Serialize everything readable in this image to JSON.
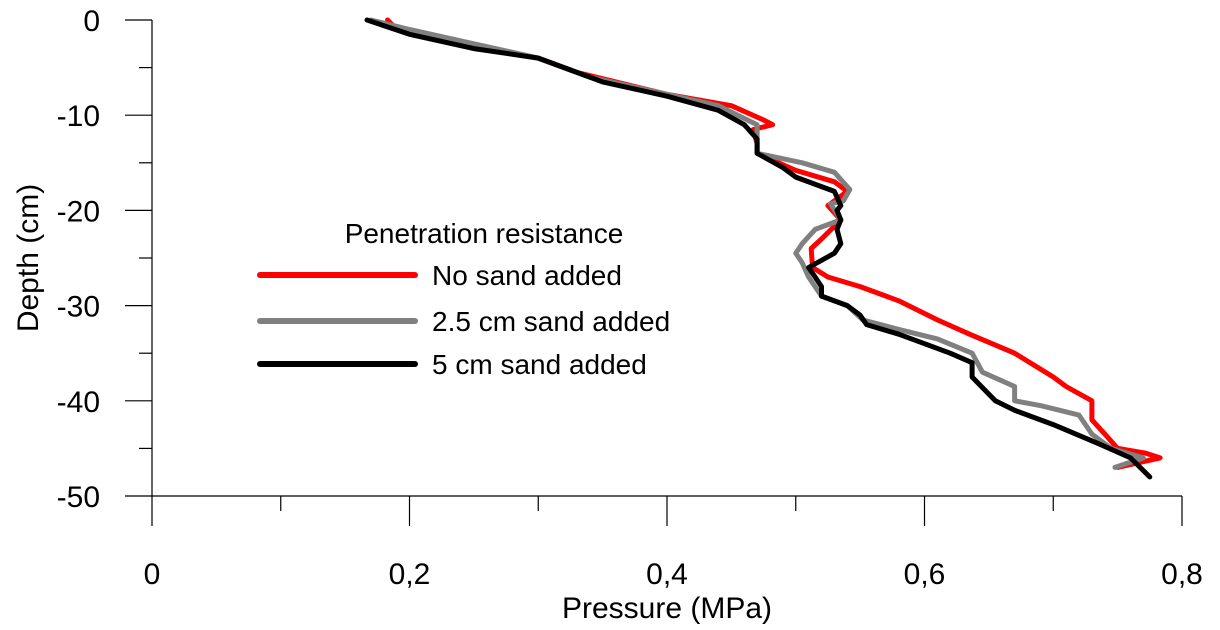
{
  "chart_data": {
    "type": "line",
    "xlabel": "Pressure (MPa)",
    "ylabel": "Depth (cm)",
    "xlim": [
      0,
      0.8
    ],
    "ylim": [
      -50,
      0
    ],
    "x_ticks": [
      0,
      0.2,
      0.4,
      0.6,
      0.8
    ],
    "x_tick_labels": [
      "0",
      "0,2",
      "0,4",
      "0,6",
      "0,8"
    ],
    "y_ticks": [
      0,
      -10,
      -20,
      -30,
      -40,
      -50
    ],
    "y_tick_labels": [
      "0",
      "-10",
      "-20",
      "-30",
      "-40",
      "-50"
    ],
    "grid": false,
    "legend_title": "Penetration resistance",
    "legend_position": "center-left",
    "series": [
      {
        "name": "No sand added",
        "color": "#ff0000",
        "points": [
          [
            0.183,
            0
          ],
          [
            0.19,
            -1
          ],
          [
            0.24,
            -2.5
          ],
          [
            0.3,
            -4
          ],
          [
            0.33,
            -5.5
          ],
          [
            0.4,
            -7.8
          ],
          [
            0.45,
            -9
          ],
          [
            0.475,
            -10.5
          ],
          [
            0.482,
            -11
          ],
          [
            0.467,
            -11.5
          ],
          [
            0.47,
            -13
          ],
          [
            0.47,
            -14
          ],
          [
            0.5,
            -15.8
          ],
          [
            0.53,
            -17
          ],
          [
            0.54,
            -18
          ],
          [
            0.525,
            -19.5
          ],
          [
            0.535,
            -21
          ],
          [
            0.52,
            -23
          ],
          [
            0.512,
            -24
          ],
          [
            0.513,
            -26
          ],
          [
            0.525,
            -27
          ],
          [
            0.55,
            -28
          ],
          [
            0.58,
            -29.5
          ],
          [
            0.61,
            -31.5
          ],
          [
            0.635,
            -33
          ],
          [
            0.67,
            -35
          ],
          [
            0.7,
            -37.5
          ],
          [
            0.71,
            -38.5
          ],
          [
            0.73,
            -40
          ],
          [
            0.73,
            -42
          ],
          [
            0.74,
            -43.5
          ],
          [
            0.75,
            -45
          ],
          [
            0.772,
            -45.5
          ],
          [
            0.783,
            -46
          ],
          [
            0.75,
            -47
          ]
        ]
      },
      {
        "name": "2.5 cm sand added",
        "color": "#808080",
        "points": [
          [
            0.17,
            0
          ],
          [
            0.2,
            -1
          ],
          [
            0.25,
            -2.5
          ],
          [
            0.3,
            -4
          ],
          [
            0.34,
            -6
          ],
          [
            0.4,
            -7.8
          ],
          [
            0.44,
            -9
          ],
          [
            0.47,
            -11
          ],
          [
            0.47,
            -13
          ],
          [
            0.47,
            -14
          ],
          [
            0.505,
            -15
          ],
          [
            0.53,
            -16
          ],
          [
            0.542,
            -17.8
          ],
          [
            0.537,
            -19
          ],
          [
            0.527,
            -19.3
          ],
          [
            0.535,
            -21
          ],
          [
            0.515,
            -22
          ],
          [
            0.505,
            -23.5
          ],
          [
            0.5,
            -24.5
          ],
          [
            0.505,
            -25.5
          ],
          [
            0.51,
            -27
          ],
          [
            0.52,
            -29
          ],
          [
            0.53,
            -29.5
          ],
          [
            0.54,
            -30
          ],
          [
            0.552,
            -31.5
          ],
          [
            0.58,
            -32.5
          ],
          [
            0.61,
            -33.5
          ],
          [
            0.637,
            -35
          ],
          [
            0.645,
            -37
          ],
          [
            0.67,
            -38.5
          ],
          [
            0.67,
            -40
          ],
          [
            0.69,
            -40.5
          ],
          [
            0.72,
            -41.5
          ],
          [
            0.73,
            -43.5
          ],
          [
            0.745,
            -45
          ],
          [
            0.77,
            -46
          ],
          [
            0.748,
            -47
          ]
        ]
      },
      {
        "name": "5 cm sand added",
        "color": "#000000",
        "points": [
          [
            0.167,
            0
          ],
          [
            0.2,
            -1.5
          ],
          [
            0.25,
            -3
          ],
          [
            0.3,
            -4
          ],
          [
            0.32,
            -5
          ],
          [
            0.35,
            -6.5
          ],
          [
            0.4,
            -8
          ],
          [
            0.44,
            -9.5
          ],
          [
            0.46,
            -11
          ],
          [
            0.47,
            -12.5
          ],
          [
            0.47,
            -14
          ],
          [
            0.49,
            -15.5
          ],
          [
            0.5,
            -16.5
          ],
          [
            0.52,
            -17.5
          ],
          [
            0.53,
            -18
          ],
          [
            0.535,
            -19.5
          ],
          [
            0.532,
            -20
          ],
          [
            0.535,
            -21
          ],
          [
            0.532,
            -22
          ],
          [
            0.535,
            -23.5
          ],
          [
            0.53,
            -24.5
          ],
          [
            0.51,
            -26
          ],
          [
            0.515,
            -27
          ],
          [
            0.52,
            -28
          ],
          [
            0.52,
            -29
          ],
          [
            0.54,
            -30
          ],
          [
            0.55,
            -31
          ],
          [
            0.555,
            -32
          ],
          [
            0.58,
            -33
          ],
          [
            0.6,
            -34
          ],
          [
            0.62,
            -35
          ],
          [
            0.637,
            -36
          ],
          [
            0.637,
            -37.5
          ],
          [
            0.655,
            -40
          ],
          [
            0.67,
            -41
          ],
          [
            0.7,
            -42.5
          ],
          [
            0.735,
            -44.5
          ],
          [
            0.76,
            -46
          ],
          [
            0.775,
            -48
          ]
        ]
      }
    ]
  }
}
